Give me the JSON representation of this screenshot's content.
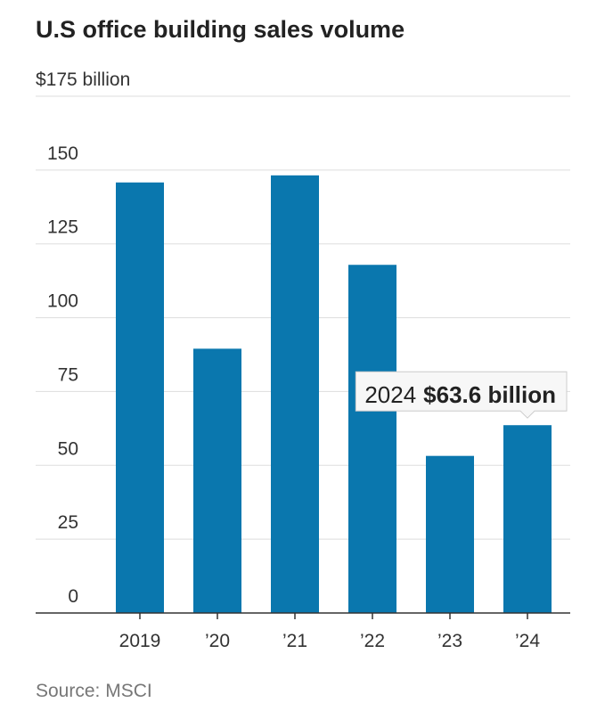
{
  "chart_data": {
    "type": "bar",
    "title": "U.S office building sales volume",
    "categories": [
      "2019",
      "’20",
      "’21",
      "’22",
      "’23",
      "’24"
    ],
    "values": [
      145.8,
      89.5,
      148.2,
      117.9,
      53.2,
      63.6
    ],
    "value_labels": [
      null,
      null,
      null,
      null,
      null,
      "$63.6 billion"
    ],
    "annotation": "2024",
    "color": "#0a77ae",
    "ylim": [
      0,
      175
    ],
    "yticks": [
      0,
      25,
      50,
      75,
      100,
      125,
      150,
      {
        "value": 175,
        "label": "$175 billion"
      }
    ],
    "grid": true,
    "source": "Source: MSCI"
  }
}
